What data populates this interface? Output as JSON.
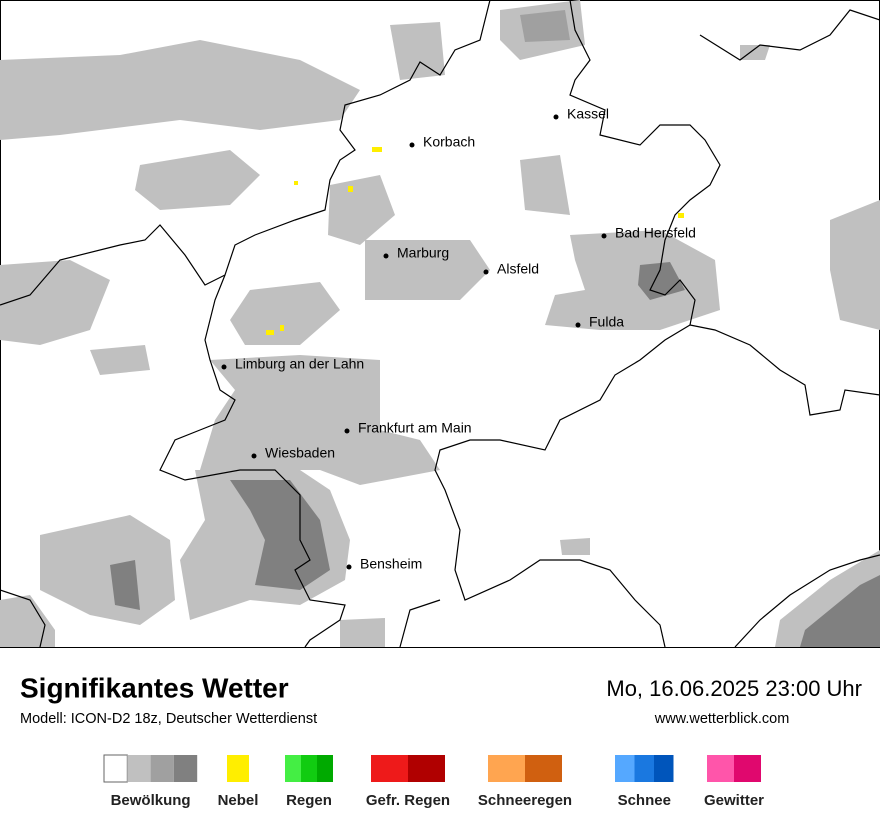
{
  "map": {
    "cities": [
      "Kassel",
      "Korbach",
      "Bad Hersfeld",
      "Marburg",
      "Alsfeld",
      "Fulda",
      "Limburg an der Lahn",
      "Frankfurt am Main",
      "Wiesbaden",
      "Bensheim"
    ]
  },
  "footer": {
    "title": "Signifikantes Wetter",
    "subtitle": "Modell: ICON-D2 18z, Deutscher Wetterdienst",
    "datetime": "Mo, 16.06.2025 23:00 Uhr",
    "url": "www.wetterblick.com"
  },
  "legend": [
    {
      "label": "Bewölkung",
      "colors": [
        "#ffffff",
        "#c0c0c0",
        "#a0a0a0",
        "#808080"
      ]
    },
    {
      "label": "Nebel",
      "colors": [
        "#ffee00"
      ]
    },
    {
      "label": "Regen",
      "colors": [
        "#44ee44",
        "#11cc11",
        "#00aa00"
      ]
    },
    {
      "label": "Gefr. Regen",
      "colors": [
        "#ee1a1a",
        "#b00000"
      ]
    },
    {
      "label": "Schneeregen",
      "colors": [
        "#ffa550",
        "#d06010"
      ]
    },
    {
      "label": "Schnee",
      "colors": [
        "#55a8ff",
        "#1a78e0",
        "#0055bb"
      ]
    },
    {
      "label": "Gewitter",
      "colors": [
        "#ff55aa",
        "#e0086e"
      ]
    }
  ]
}
